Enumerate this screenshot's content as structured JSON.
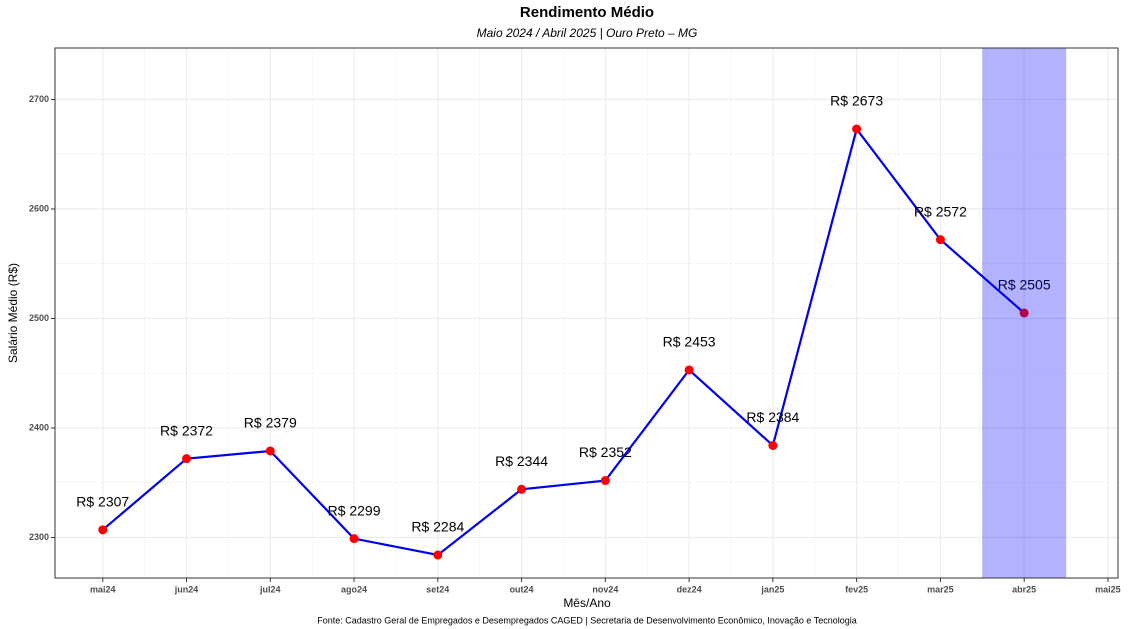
{
  "chart_data": {
    "type": "line",
    "title": "Rendimento Médio",
    "subtitle": "Maio 2024 / Abril 2025 | Ouro Preto – MG",
    "x_label": "Mês/Ano",
    "y_label": "Salário Médio (R$)",
    "caption": "Fonte: Cadastro Geral de Empregados e Desempregados CAGED | Secretaria de Desenvolvimento Econômico, Inovação e Tecnologia",
    "categories": [
      "mai24",
      "jun24",
      "jul24",
      "ago24",
      "set24",
      "out24",
      "nov24",
      "dez24",
      "jan25",
      "fev25",
      "mar25",
      "abr25",
      "mai25"
    ],
    "series": [
      {
        "color": "#0000ee",
        "point_color": "#ff0000",
        "values": [
          2307,
          2372,
          2379,
          2299,
          2284,
          2344,
          2352,
          2453,
          2384,
          2673,
          2572,
          2505,
          null
        ],
        "value_labels": [
          "R$ 2307",
          "R$ 2372",
          "R$ 2379",
          "R$ 2299",
          "R$ 2284",
          "R$ 2344",
          "R$ 2352",
          "R$ 2453",
          "R$ 2384",
          "R$ 2673",
          "R$ 2572",
          "R$ 2505",
          null
        ]
      }
    ],
    "highlight": {
      "x": [
        10.5,
        11.5
      ],
      "color": "#0000ff",
      "alpha": 0.3
    },
    "xlim": [
      -0.57,
      12.12
    ],
    "ylim": [
      2263,
      2747
    ],
    "yticks": [
      2300,
      2400,
      2500,
      2600,
      2700
    ],
    "grid": true
  }
}
